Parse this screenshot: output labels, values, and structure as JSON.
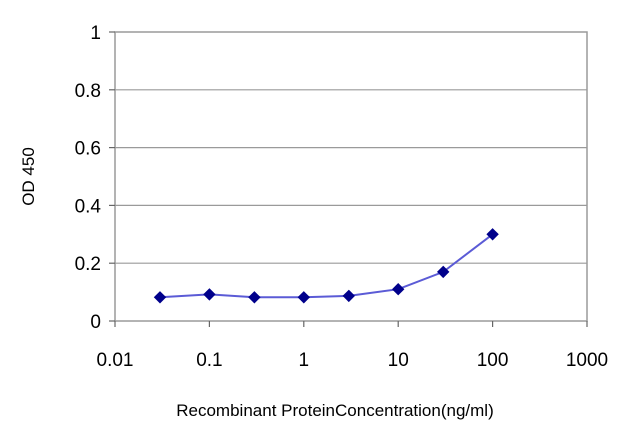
{
  "chart_data": {
    "type": "line",
    "title": "",
    "xlabel": "Recombinant ProteinConcentration(ng/ml)",
    "ylabel": "OD 450",
    "x_scale": "log",
    "xlim": [
      0.01,
      1000
    ],
    "ylim": [
      0,
      1
    ],
    "x_ticks": [
      "0.01",
      "0.1",
      "1",
      "10",
      "100",
      "1000"
    ],
    "y_ticks": [
      "0",
      "0.2",
      "0.4",
      "0.6",
      "0.8",
      "1"
    ],
    "grid": "horizontal",
    "legend": "none",
    "series": [
      {
        "x": [
          0.03,
          0.1,
          0.3,
          1,
          3,
          10,
          30,
          100
        ],
        "values": [
          0.082,
          0.092,
          0.082,
          0.082,
          0.087,
          0.11,
          0.17,
          0.3
        ],
        "color": "#00008b"
      }
    ]
  }
}
